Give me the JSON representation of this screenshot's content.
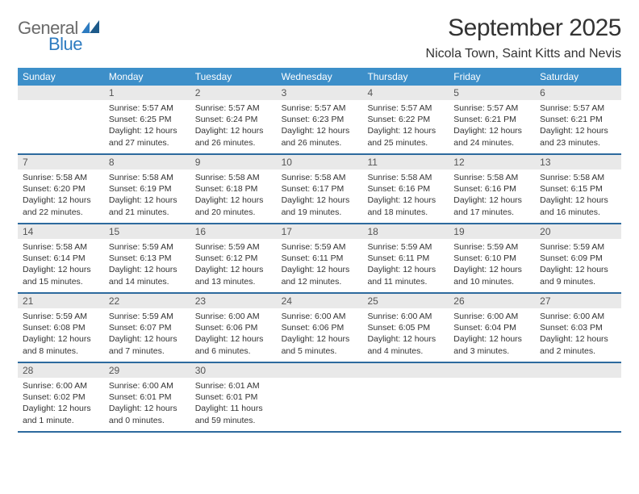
{
  "logo": {
    "word1": "General",
    "word2": "Blue",
    "word1_color": "#6a6a6a",
    "word2_color": "#2d7bc0"
  },
  "title": "September 2025",
  "location": "Nicola Town, Saint Kitts and Nevis",
  "header_bg": "#3d8fc9",
  "header_text_color": "#ffffff",
  "daynum_bg": "#e9e9e9",
  "rule_color": "#2d6a9e",
  "weekdays": [
    "Sunday",
    "Monday",
    "Tuesday",
    "Wednesday",
    "Thursday",
    "Friday",
    "Saturday"
  ],
  "weeks": [
    [
      {
        "num": "",
        "sunrise": "",
        "sunset": "",
        "daylight": ""
      },
      {
        "num": "1",
        "sunrise": "Sunrise: 5:57 AM",
        "sunset": "Sunset: 6:25 PM",
        "daylight": "Daylight: 12 hours and 27 minutes."
      },
      {
        "num": "2",
        "sunrise": "Sunrise: 5:57 AM",
        "sunset": "Sunset: 6:24 PM",
        "daylight": "Daylight: 12 hours and 26 minutes."
      },
      {
        "num": "3",
        "sunrise": "Sunrise: 5:57 AM",
        "sunset": "Sunset: 6:23 PM",
        "daylight": "Daylight: 12 hours and 26 minutes."
      },
      {
        "num": "4",
        "sunrise": "Sunrise: 5:57 AM",
        "sunset": "Sunset: 6:22 PM",
        "daylight": "Daylight: 12 hours and 25 minutes."
      },
      {
        "num": "5",
        "sunrise": "Sunrise: 5:57 AM",
        "sunset": "Sunset: 6:21 PM",
        "daylight": "Daylight: 12 hours and 24 minutes."
      },
      {
        "num": "6",
        "sunrise": "Sunrise: 5:57 AM",
        "sunset": "Sunset: 6:21 PM",
        "daylight": "Daylight: 12 hours and 23 minutes."
      }
    ],
    [
      {
        "num": "7",
        "sunrise": "Sunrise: 5:58 AM",
        "sunset": "Sunset: 6:20 PM",
        "daylight": "Daylight: 12 hours and 22 minutes."
      },
      {
        "num": "8",
        "sunrise": "Sunrise: 5:58 AM",
        "sunset": "Sunset: 6:19 PM",
        "daylight": "Daylight: 12 hours and 21 minutes."
      },
      {
        "num": "9",
        "sunrise": "Sunrise: 5:58 AM",
        "sunset": "Sunset: 6:18 PM",
        "daylight": "Daylight: 12 hours and 20 minutes."
      },
      {
        "num": "10",
        "sunrise": "Sunrise: 5:58 AM",
        "sunset": "Sunset: 6:17 PM",
        "daylight": "Daylight: 12 hours and 19 minutes."
      },
      {
        "num": "11",
        "sunrise": "Sunrise: 5:58 AM",
        "sunset": "Sunset: 6:16 PM",
        "daylight": "Daylight: 12 hours and 18 minutes."
      },
      {
        "num": "12",
        "sunrise": "Sunrise: 5:58 AM",
        "sunset": "Sunset: 6:16 PM",
        "daylight": "Daylight: 12 hours and 17 minutes."
      },
      {
        "num": "13",
        "sunrise": "Sunrise: 5:58 AM",
        "sunset": "Sunset: 6:15 PM",
        "daylight": "Daylight: 12 hours and 16 minutes."
      }
    ],
    [
      {
        "num": "14",
        "sunrise": "Sunrise: 5:58 AM",
        "sunset": "Sunset: 6:14 PM",
        "daylight": "Daylight: 12 hours and 15 minutes."
      },
      {
        "num": "15",
        "sunrise": "Sunrise: 5:59 AM",
        "sunset": "Sunset: 6:13 PM",
        "daylight": "Daylight: 12 hours and 14 minutes."
      },
      {
        "num": "16",
        "sunrise": "Sunrise: 5:59 AM",
        "sunset": "Sunset: 6:12 PM",
        "daylight": "Daylight: 12 hours and 13 minutes."
      },
      {
        "num": "17",
        "sunrise": "Sunrise: 5:59 AM",
        "sunset": "Sunset: 6:11 PM",
        "daylight": "Daylight: 12 hours and 12 minutes."
      },
      {
        "num": "18",
        "sunrise": "Sunrise: 5:59 AM",
        "sunset": "Sunset: 6:11 PM",
        "daylight": "Daylight: 12 hours and 11 minutes."
      },
      {
        "num": "19",
        "sunrise": "Sunrise: 5:59 AM",
        "sunset": "Sunset: 6:10 PM",
        "daylight": "Daylight: 12 hours and 10 minutes."
      },
      {
        "num": "20",
        "sunrise": "Sunrise: 5:59 AM",
        "sunset": "Sunset: 6:09 PM",
        "daylight": "Daylight: 12 hours and 9 minutes."
      }
    ],
    [
      {
        "num": "21",
        "sunrise": "Sunrise: 5:59 AM",
        "sunset": "Sunset: 6:08 PM",
        "daylight": "Daylight: 12 hours and 8 minutes."
      },
      {
        "num": "22",
        "sunrise": "Sunrise: 5:59 AM",
        "sunset": "Sunset: 6:07 PM",
        "daylight": "Daylight: 12 hours and 7 minutes."
      },
      {
        "num": "23",
        "sunrise": "Sunrise: 6:00 AM",
        "sunset": "Sunset: 6:06 PM",
        "daylight": "Daylight: 12 hours and 6 minutes."
      },
      {
        "num": "24",
        "sunrise": "Sunrise: 6:00 AM",
        "sunset": "Sunset: 6:06 PM",
        "daylight": "Daylight: 12 hours and 5 minutes."
      },
      {
        "num": "25",
        "sunrise": "Sunrise: 6:00 AM",
        "sunset": "Sunset: 6:05 PM",
        "daylight": "Daylight: 12 hours and 4 minutes."
      },
      {
        "num": "26",
        "sunrise": "Sunrise: 6:00 AM",
        "sunset": "Sunset: 6:04 PM",
        "daylight": "Daylight: 12 hours and 3 minutes."
      },
      {
        "num": "27",
        "sunrise": "Sunrise: 6:00 AM",
        "sunset": "Sunset: 6:03 PM",
        "daylight": "Daylight: 12 hours and 2 minutes."
      }
    ],
    [
      {
        "num": "28",
        "sunrise": "Sunrise: 6:00 AM",
        "sunset": "Sunset: 6:02 PM",
        "daylight": "Daylight: 12 hours and 1 minute."
      },
      {
        "num": "29",
        "sunrise": "Sunrise: 6:00 AM",
        "sunset": "Sunset: 6:01 PM",
        "daylight": "Daylight: 12 hours and 0 minutes."
      },
      {
        "num": "30",
        "sunrise": "Sunrise: 6:01 AM",
        "sunset": "Sunset: 6:01 PM",
        "daylight": "Daylight: 11 hours and 59 minutes."
      },
      {
        "num": "",
        "sunrise": "",
        "sunset": "",
        "daylight": ""
      },
      {
        "num": "",
        "sunrise": "",
        "sunset": "",
        "daylight": ""
      },
      {
        "num": "",
        "sunrise": "",
        "sunset": "",
        "daylight": ""
      },
      {
        "num": "",
        "sunrise": "",
        "sunset": "",
        "daylight": ""
      }
    ]
  ]
}
